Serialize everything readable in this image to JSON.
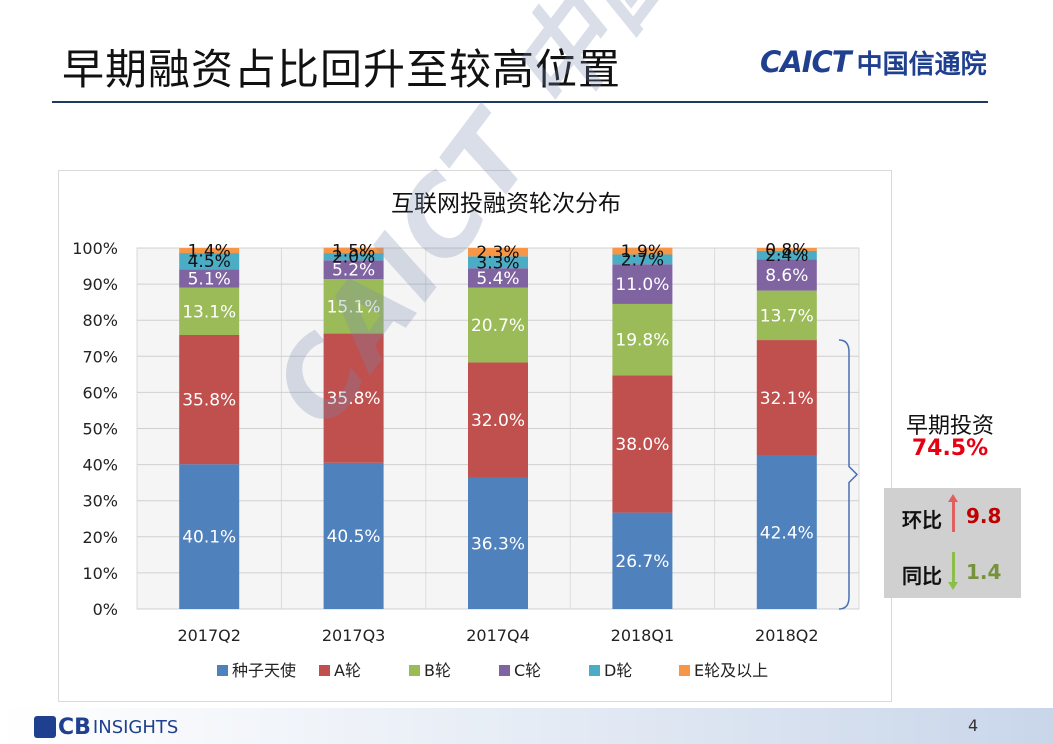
{
  "slide": {
    "title": "早期融资占比回升至较高位置",
    "logo_latin": "CAICT",
    "logo_cn": "中国信通院",
    "watermark": "CAICT 中国信通院",
    "page_number": "4",
    "footer_logo_text": "CB",
    "footer_logo_text2": "INSIGHTS"
  },
  "callout": {
    "title": "早期投资",
    "value": "74.5%",
    "qoq_label": "环比",
    "qoq_value": "9.8",
    "yoy_label": "同比",
    "yoy_value": "1.4",
    "qoq_color": "#c00000",
    "yoy_color": "#76933c"
  },
  "chart_data": {
    "type": "bar",
    "stacked": true,
    "title": "互联网投融资轮次分布",
    "categories": [
      "2017Q2",
      "2017Q3",
      "2017Q4",
      "2018Q1",
      "2018Q2"
    ],
    "yticks": [
      "0%",
      "10%",
      "20%",
      "30%",
      "40%",
      "50%",
      "60%",
      "70%",
      "80%",
      "90%",
      "100%"
    ],
    "ylim": [
      0,
      100
    ],
    "legend_position": "bottom",
    "grid": true,
    "series": [
      {
        "name": "种子天使",
        "color": "#4f81bd",
        "values": [
          40.1,
          40.5,
          36.3,
          26.7,
          42.4
        ],
        "labels": [
          "40.1%",
          "40.5%",
          "36.3%",
          "26.7%",
          "42.4%"
        ]
      },
      {
        "name": "A轮",
        "color": "#c0504d",
        "values": [
          35.8,
          35.8,
          32.0,
          38.0,
          32.1
        ],
        "labels": [
          "35.8%",
          "35.8%",
          "32.0%",
          "38.0%",
          "32.1%"
        ]
      },
      {
        "name": "B轮",
        "color": "#9bbb59",
        "values": [
          13.1,
          15.1,
          20.7,
          19.8,
          13.7
        ],
        "labels": [
          "13.1%",
          "15.1%",
          "20.7%",
          "19.8%",
          "13.7%"
        ]
      },
      {
        "name": "C轮",
        "color": "#8064a2",
        "values": [
          5.1,
          5.2,
          5.4,
          11.0,
          8.6
        ],
        "labels": [
          "5.1%",
          "5.2%",
          "5.4%",
          "11.0%",
          "8.6%"
        ]
      },
      {
        "name": "D轮",
        "color": "#4bacc6",
        "values": [
          4.5,
          2.0,
          3.3,
          2.7,
          2.4
        ],
        "labels": [
          "4.5%",
          "2.0%",
          "3.3%",
          "2.7%",
          "2.4%"
        ]
      },
      {
        "name": "E轮及以上",
        "color": "#f79646",
        "values": [
          1.4,
          1.5,
          2.3,
          1.9,
          0.8
        ],
        "labels": [
          "1.4%",
          "1.5%",
          "2.3%",
          "1.9%",
          "0.8%"
        ]
      }
    ]
  }
}
